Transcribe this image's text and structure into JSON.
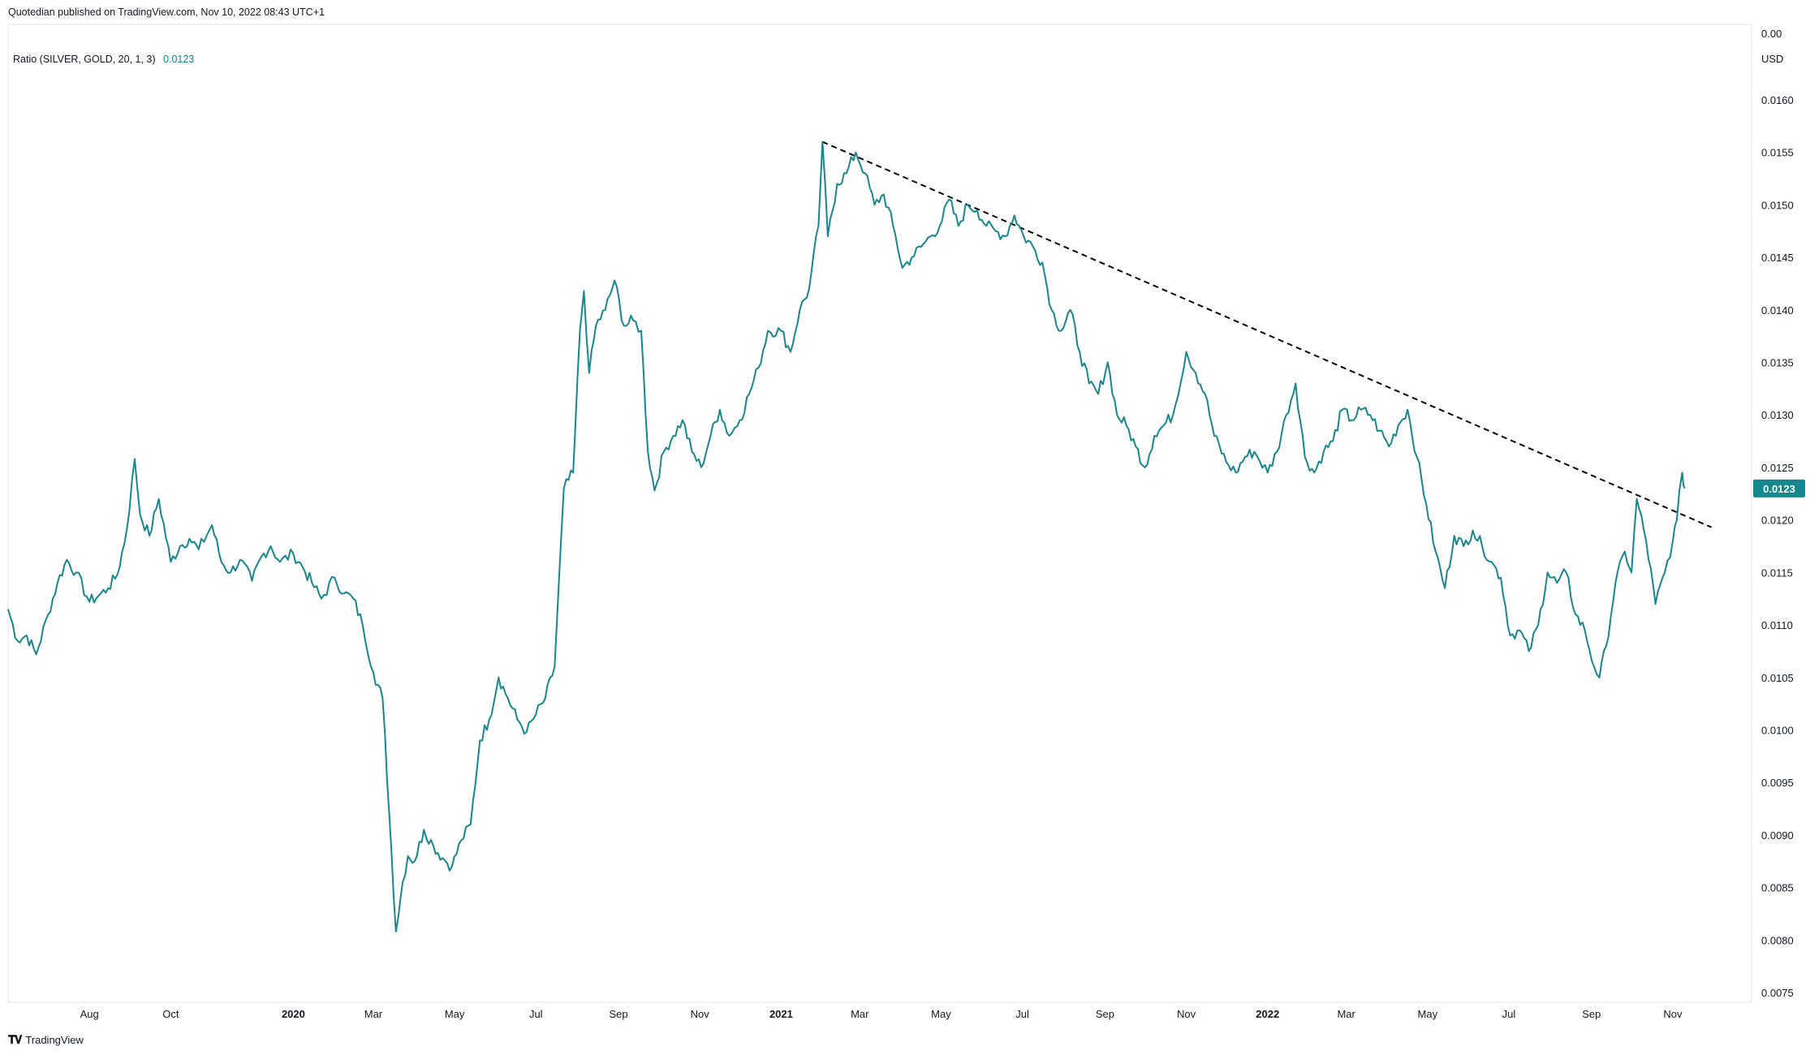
{
  "header": {
    "published_line": "Quotedian published on TradingView.com, Nov 10, 2022 08:43 UTC+1"
  },
  "indicator": {
    "name": "Ratio (SILVER, GOLD, 20, 1, 3)",
    "value": "0.0123",
    "color": "#14878f"
  },
  "price_axis": {
    "top_label": "0.00",
    "currency": "USD",
    "last_value": "0.0123"
  },
  "footer": {
    "brand": "TradingView"
  },
  "chart_data": {
    "type": "line",
    "title": "",
    "xlabel": "",
    "ylabel": "",
    "ylim": [
      0.0072,
      0.0166
    ],
    "line_color": "#14878f",
    "y_ticks": [
      "0.0160",
      "0.0155",
      "0.0150",
      "0.0145",
      "0.0140",
      "0.0135",
      "0.0130",
      "0.0125",
      "0.0120",
      "0.0115",
      "0.0110",
      "0.0105",
      "0.0100",
      "0.0095",
      "0.0090",
      "0.0085",
      "0.0080",
      "0.0075"
    ],
    "y_tick_values": [
      0.016,
      0.0155,
      0.015,
      0.0145,
      0.014,
      0.0135,
      0.013,
      0.0125,
      0.012,
      0.0115,
      0.011,
      0.0105,
      0.01,
      0.0095,
      0.009,
      0.0085,
      0.008,
      0.0075
    ],
    "x_ticks": [
      {
        "label": "Aug",
        "date": "2019-08-01",
        "bold": false
      },
      {
        "label": "Oct",
        "date": "2019-10-01",
        "bold": false
      },
      {
        "label": "2020",
        "date": "2020-01-01",
        "bold": true
      },
      {
        "label": "Mar",
        "date": "2020-03-01",
        "bold": false
      },
      {
        "label": "May",
        "date": "2020-05-01",
        "bold": false
      },
      {
        "label": "Jul",
        "date": "2020-07-01",
        "bold": false
      },
      {
        "label": "Sep",
        "date": "2020-09-01",
        "bold": false
      },
      {
        "label": "Nov",
        "date": "2020-11-01",
        "bold": false
      },
      {
        "label": "2021",
        "date": "2021-01-01",
        "bold": true
      },
      {
        "label": "Mar",
        "date": "2021-03-01",
        "bold": false
      },
      {
        "label": "May",
        "date": "2021-05-01",
        "bold": false
      },
      {
        "label": "Jul",
        "date": "2021-07-01",
        "bold": false
      },
      {
        "label": "Sep",
        "date": "2021-09-01",
        "bold": false
      },
      {
        "label": "Nov",
        "date": "2021-11-01",
        "bold": false
      },
      {
        "label": "2022",
        "date": "2022-01-01",
        "bold": true
      },
      {
        "label": "Mar",
        "date": "2022-03-01",
        "bold": false
      },
      {
        "label": "May",
        "date": "2022-05-01",
        "bold": false
      },
      {
        "label": "Jul",
        "date": "2022-07-01",
        "bold": false
      },
      {
        "label": "Sep",
        "date": "2022-09-01",
        "bold": false
      },
      {
        "label": "Nov",
        "date": "2022-11-01",
        "bold": false
      }
    ],
    "series": [
      {
        "values": [
          [
            "2019-06-01",
            0.01115
          ],
          [
            "2019-06-08",
            0.01085
          ],
          [
            "2019-06-15",
            0.0109
          ],
          [
            "2019-06-22",
            0.01072
          ],
          [
            "2019-07-01",
            0.0111
          ],
          [
            "2019-07-08",
            0.0114
          ],
          [
            "2019-07-15",
            0.01162
          ],
          [
            "2019-07-22",
            0.0115
          ],
          [
            "2019-08-01",
            0.01122
          ],
          [
            "2019-08-08",
            0.01128
          ],
          [
            "2019-08-15",
            0.01135
          ],
          [
            "2019-08-22",
            0.01148
          ],
          [
            "2019-08-29",
            0.0119
          ],
          [
            "2019-09-04",
            0.01258
          ],
          [
            "2019-09-08",
            0.01205
          ],
          [
            "2019-09-15",
            0.01185
          ],
          [
            "2019-09-22",
            0.0122
          ],
          [
            "2019-10-01",
            0.0116
          ],
          [
            "2019-10-08",
            0.01175
          ],
          [
            "2019-10-15",
            0.01182
          ],
          [
            "2019-10-22",
            0.01172
          ],
          [
            "2019-11-01",
            0.01195
          ],
          [
            "2019-11-08",
            0.0116
          ],
          [
            "2019-11-15",
            0.0115
          ],
          [
            "2019-11-22",
            0.01162
          ],
          [
            "2019-12-01",
            0.01142
          ],
          [
            "2019-12-08",
            0.01165
          ],
          [
            "2019-12-15",
            0.01175
          ],
          [
            "2019-12-22",
            0.0116
          ],
          [
            "2020-01-01",
            0.01168
          ],
          [
            "2020-01-08",
            0.01155
          ],
          [
            "2020-01-15",
            0.0114
          ],
          [
            "2020-01-22",
            0.01125
          ],
          [
            "2020-02-01",
            0.01145
          ],
          [
            "2020-02-08",
            0.0113
          ],
          [
            "2020-02-15",
            0.01125
          ],
          [
            "2020-02-22",
            0.011
          ],
          [
            "2020-03-01",
            0.01055
          ],
          [
            "2020-03-08",
            0.0103
          ],
          [
            "2020-03-13",
            0.0092
          ],
          [
            "2020-03-18",
            0.00808
          ],
          [
            "2020-03-23",
            0.00855
          ],
          [
            "2020-03-27",
            0.0088
          ],
          [
            "2020-04-01",
            0.00875
          ],
          [
            "2020-04-08",
            0.00905
          ],
          [
            "2020-04-15",
            0.0089
          ],
          [
            "2020-04-22",
            0.00878
          ],
          [
            "2020-04-29",
            0.0087
          ],
          [
            "2020-05-06",
            0.00895
          ],
          [
            "2020-05-13",
            0.0091
          ],
          [
            "2020-05-20",
            0.0099
          ],
          [
            "2020-05-27",
            0.0101
          ],
          [
            "2020-06-03",
            0.0105
          ],
          [
            "2020-06-10",
            0.0103
          ],
          [
            "2020-06-17",
            0.0101
          ],
          [
            "2020-06-24",
            0.00998
          ],
          [
            "2020-07-01",
            0.01015
          ],
          [
            "2020-07-08",
            0.0103
          ],
          [
            "2020-07-15",
            0.0106
          ],
          [
            "2020-07-22",
            0.0123
          ],
          [
            "2020-07-29",
            0.01245
          ],
          [
            "2020-08-03",
            0.0138
          ],
          [
            "2020-08-06",
            0.01418
          ],
          [
            "2020-08-10",
            0.0134
          ],
          [
            "2020-08-15",
            0.01385
          ],
          [
            "2020-08-22",
            0.014
          ],
          [
            "2020-08-29",
            0.01428
          ],
          [
            "2020-09-05",
            0.01385
          ],
          [
            "2020-09-12",
            0.0139
          ],
          [
            "2020-09-18",
            0.0138
          ],
          [
            "2020-09-23",
            0.01265
          ],
          [
            "2020-09-28",
            0.01228
          ],
          [
            "2020-10-05",
            0.01265
          ],
          [
            "2020-10-12",
            0.0128
          ],
          [
            "2020-10-19",
            0.01295
          ],
          [
            "2020-10-26",
            0.01265
          ],
          [
            "2020-11-02",
            0.0125
          ],
          [
            "2020-11-09",
            0.0128
          ],
          [
            "2020-11-16",
            0.01305
          ],
          [
            "2020-11-23",
            0.0128
          ],
          [
            "2020-12-01",
            0.01295
          ],
          [
            "2020-12-08",
            0.0132
          ],
          [
            "2020-12-15",
            0.01345
          ],
          [
            "2020-12-22",
            0.0138
          ],
          [
            "2021-01-01",
            0.0138
          ],
          [
            "2021-01-08",
            0.0136
          ],
          [
            "2021-01-15",
            0.014
          ],
          [
            "2021-01-22",
            0.0142
          ],
          [
            "2021-01-29",
            0.0148
          ],
          [
            "2021-02-01",
            0.0156
          ],
          [
            "2021-02-05",
            0.0147
          ],
          [
            "2021-02-12",
            0.0152
          ],
          [
            "2021-02-19",
            0.0153
          ],
          [
            "2021-02-26",
            0.0155
          ],
          [
            "2021-03-05",
            0.0153
          ],
          [
            "2021-03-12",
            0.015
          ],
          [
            "2021-03-19",
            0.0151
          ],
          [
            "2021-03-26",
            0.0148
          ],
          [
            "2021-04-02",
            0.0144
          ],
          [
            "2021-04-09",
            0.0145
          ],
          [
            "2021-04-16",
            0.0146
          ],
          [
            "2021-04-23",
            0.0147
          ],
          [
            "2021-04-30",
            0.0148
          ],
          [
            "2021-05-07",
            0.01505
          ],
          [
            "2021-05-14",
            0.0148
          ],
          [
            "2021-05-21",
            0.015
          ],
          [
            "2021-05-28",
            0.01495
          ],
          [
            "2021-06-04",
            0.0148
          ],
          [
            "2021-06-11",
            0.01475
          ],
          [
            "2021-06-18",
            0.0147
          ],
          [
            "2021-06-25",
            0.0149
          ],
          [
            "2021-07-02",
            0.0147
          ],
          [
            "2021-07-09",
            0.0146
          ],
          [
            "2021-07-16",
            0.01445
          ],
          [
            "2021-07-23",
            0.014
          ],
          [
            "2021-07-30",
            0.0138
          ],
          [
            "2021-08-06",
            0.014
          ],
          [
            "2021-08-13",
            0.0136
          ],
          [
            "2021-08-20",
            0.0133
          ],
          [
            "2021-08-27",
            0.0132
          ],
          [
            "2021-09-03",
            0.0135
          ],
          [
            "2021-09-10",
            0.013
          ],
          [
            "2021-09-17",
            0.0129
          ],
          [
            "2021-09-24",
            0.0127
          ],
          [
            "2021-10-01",
            0.0125
          ],
          [
            "2021-10-08",
            0.0128
          ],
          [
            "2021-10-15",
            0.0129
          ],
          [
            "2021-10-22",
            0.013
          ],
          [
            "2021-11-01",
            0.0136
          ],
          [
            "2021-11-08",
            0.0134
          ],
          [
            "2021-11-15",
            0.0132
          ],
          [
            "2021-11-22",
            0.0128
          ],
          [
            "2021-12-01",
            0.01255
          ],
          [
            "2021-12-08",
            0.01245
          ],
          [
            "2021-12-15",
            0.0126
          ],
          [
            "2021-12-22",
            0.01265
          ],
          [
            "2022-01-01",
            0.01245
          ],
          [
            "2022-01-08",
            0.01265
          ],
          [
            "2022-01-15",
            0.013
          ],
          [
            "2022-01-22",
            0.0133
          ],
          [
            "2022-01-29",
            0.0126
          ],
          [
            "2022-02-05",
            0.01245
          ],
          [
            "2022-02-12",
            0.01265
          ],
          [
            "2022-02-19",
            0.01275
          ],
          [
            "2022-02-26",
            0.01305
          ],
          [
            "2022-03-05",
            0.01295
          ],
          [
            "2022-03-12",
            0.01305
          ],
          [
            "2022-03-19",
            0.013
          ],
          [
            "2022-03-26",
            0.01285
          ],
          [
            "2022-04-02",
            0.0127
          ],
          [
            "2022-04-09",
            0.0129
          ],
          [
            "2022-04-16",
            0.01305
          ],
          [
            "2022-04-23",
            0.0126
          ],
          [
            "2022-04-30",
            0.01215
          ],
          [
            "2022-05-07",
            0.0117
          ],
          [
            "2022-05-14",
            0.01135
          ],
          [
            "2022-05-21",
            0.01185
          ],
          [
            "2022-05-28",
            0.01175
          ],
          [
            "2022-06-04",
            0.0119
          ],
          [
            "2022-06-11",
            0.01175
          ],
          [
            "2022-06-18",
            0.0116
          ],
          [
            "2022-06-25",
            0.01145
          ],
          [
            "2022-07-02",
            0.0109
          ],
          [
            "2022-07-09",
            0.01095
          ],
          [
            "2022-07-16",
            0.01075
          ],
          [
            "2022-07-23",
            0.011
          ],
          [
            "2022-07-30",
            0.0115
          ],
          [
            "2022-08-06",
            0.0114
          ],
          [
            "2022-08-13",
            0.0115
          ],
          [
            "2022-08-20",
            0.0111
          ],
          [
            "2022-08-27",
            0.01095
          ],
          [
            "2022-09-03",
            0.0106
          ],
          [
            "2022-09-07",
            0.0105
          ],
          [
            "2022-09-12",
            0.0108
          ],
          [
            "2022-09-19",
            0.0114
          ],
          [
            "2022-09-26",
            0.0117
          ],
          [
            "2022-10-01",
            0.0115
          ],
          [
            "2022-10-05",
            0.0122
          ],
          [
            "2022-10-12",
            0.0118
          ],
          [
            "2022-10-19",
            0.0112
          ],
          [
            "2022-10-26",
            0.0115
          ],
          [
            "2022-11-01",
            0.0118
          ],
          [
            "2022-11-04",
            0.012
          ],
          [
            "2022-11-08",
            0.01245
          ],
          [
            "2022-11-10",
            0.0123
          ]
        ]
      }
    ],
    "annotations": [
      {
        "type": "trendline",
        "style": "dashed",
        "color": "#000000",
        "from": [
          "2021-02-01",
          0.0156
        ],
        "to": [
          "2022-11-30",
          0.01193
        ]
      }
    ]
  }
}
